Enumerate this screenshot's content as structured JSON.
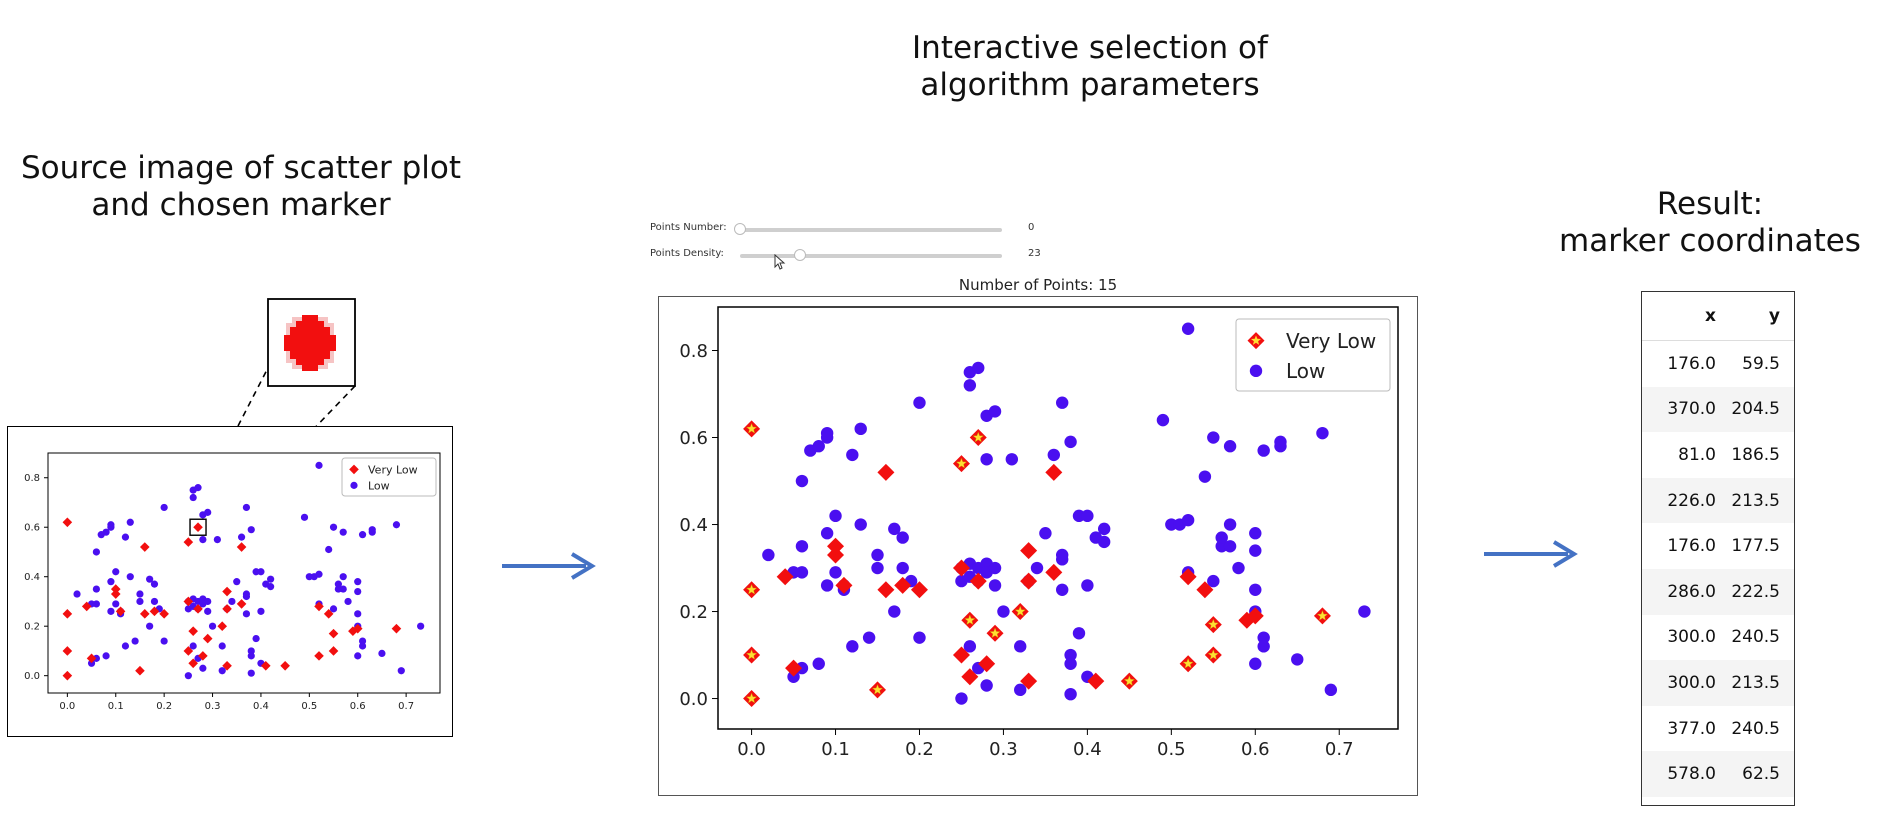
{
  "headings": {
    "source": [
      "Source image of scatter plot",
      "and chosen marker"
    ],
    "interactive": [
      "Interactive selection of",
      "algorithm parameters"
    ],
    "result": [
      "Result:",
      "marker coordinates"
    ]
  },
  "controls": {
    "points_number": {
      "label": "Points Number:",
      "value": "0",
      "fraction": 0.0
    },
    "points_density": {
      "label": "Points Density:",
      "value": "23",
      "fraction": 0.23
    }
  },
  "mid_title": "Number of Points: 15",
  "result_table": {
    "headers": [
      "x",
      "y"
    ],
    "rows": [
      [
        "176.0",
        "59.5"
      ],
      [
        "370.0",
        "204.5"
      ],
      [
        "81.0",
        "186.5"
      ],
      [
        "226.0",
        "213.5"
      ],
      [
        "176.0",
        "177.5"
      ],
      [
        "286.0",
        "222.5"
      ],
      [
        "300.0",
        "240.5"
      ],
      [
        "300.0",
        "213.5"
      ],
      [
        "377.0",
        "240.5"
      ],
      [
        "578.0",
        "62.5"
      ]
    ]
  },
  "colors": {
    "very_low": "#f20f0f",
    "low": "#4a0ff0",
    "arrow": "#4472c4",
    "star": "#ffe033"
  },
  "chart_data": {
    "type": "scatter",
    "xlim": [
      -0.04,
      0.77
    ],
    "ylim": [
      -0.07,
      0.9
    ],
    "xticks": [
      "0.0",
      "0.1",
      "0.2",
      "0.3",
      "0.4",
      "0.5",
      "0.6",
      "0.7"
    ],
    "yticks": [
      "0.0",
      "0.2",
      "0.4",
      "0.6",
      "0.8"
    ],
    "legend_position": "top-right",
    "series": [
      {
        "name": "Very Low",
        "marker": "diamond",
        "points": [
          [
            0.0,
            0.62
          ],
          [
            0.0,
            0.25
          ],
          [
            0.0,
            0.1
          ],
          [
            0.0,
            0.0
          ],
          [
            0.04,
            0.28
          ],
          [
            0.05,
            0.07
          ],
          [
            0.1,
            0.33
          ],
          [
            0.1,
            0.35
          ],
          [
            0.11,
            0.26
          ],
          [
            0.15,
            0.02
          ],
          [
            0.16,
            0.52
          ],
          [
            0.16,
            0.25
          ],
          [
            0.18,
            0.26
          ],
          [
            0.2,
            0.25
          ],
          [
            0.25,
            0.54
          ],
          [
            0.25,
            0.3
          ],
          [
            0.25,
            0.1
          ],
          [
            0.26,
            0.05
          ],
          [
            0.26,
            0.18
          ],
          [
            0.27,
            0.6
          ],
          [
            0.27,
            0.27
          ],
          [
            0.28,
            0.08
          ],
          [
            0.29,
            0.15
          ],
          [
            0.32,
            0.2
          ],
          [
            0.33,
            0.04
          ],
          [
            0.33,
            0.27
          ],
          [
            0.33,
            0.34
          ],
          [
            0.36,
            0.29
          ],
          [
            0.36,
            0.52
          ],
          [
            0.41,
            0.04
          ],
          [
            0.45,
            0.04
          ],
          [
            0.52,
            0.08
          ],
          [
            0.52,
            0.28
          ],
          [
            0.54,
            0.25
          ],
          [
            0.55,
            0.1
          ],
          [
            0.55,
            0.17
          ],
          [
            0.59,
            0.18
          ],
          [
            0.6,
            0.19
          ],
          [
            0.68,
            0.19
          ]
        ]
      },
      {
        "name": "Low",
        "marker": "circle",
        "points": [
          [
            0.02,
            0.33
          ],
          [
            0.05,
            0.29
          ],
          [
            0.05,
            0.05
          ],
          [
            0.06,
            0.07
          ],
          [
            0.06,
            0.29
          ],
          [
            0.06,
            0.35
          ],
          [
            0.06,
            0.5
          ],
          [
            0.07,
            0.57
          ],
          [
            0.08,
            0.08
          ],
          [
            0.08,
            0.58
          ],
          [
            0.09,
            0.6
          ],
          [
            0.09,
            0.61
          ],
          [
            0.09,
            0.26
          ],
          [
            0.09,
            0.38
          ],
          [
            0.1,
            0.42
          ],
          [
            0.1,
            0.29
          ],
          [
            0.11,
            0.25
          ],
          [
            0.11,
            0.26
          ],
          [
            0.12,
            0.56
          ],
          [
            0.12,
            0.12
          ],
          [
            0.13,
            0.62
          ],
          [
            0.13,
            0.4
          ],
          [
            0.14,
            0.14
          ],
          [
            0.15,
            0.33
          ],
          [
            0.15,
            0.3
          ],
          [
            0.17,
            0.2
          ],
          [
            0.17,
            0.39
          ],
          [
            0.18,
            0.37
          ],
          [
            0.18,
            0.3
          ],
          [
            0.19,
            0.27
          ],
          [
            0.2,
            0.68
          ],
          [
            0.2,
            0.14
          ],
          [
            0.25,
            0.27
          ],
          [
            0.25,
            0.3
          ],
          [
            0.25,
            0.0
          ],
          [
            0.26,
            0.75
          ],
          [
            0.26,
            0.72
          ],
          [
            0.26,
            0.31
          ],
          [
            0.26,
            0.28
          ],
          [
            0.26,
            0.12
          ],
          [
            0.27,
            0.76
          ],
          [
            0.27,
            0.3
          ],
          [
            0.27,
            0.27
          ],
          [
            0.27,
            0.07
          ],
          [
            0.28,
            0.31
          ],
          [
            0.28,
            0.29
          ],
          [
            0.28,
            0.03
          ],
          [
            0.28,
            0.55
          ],
          [
            0.28,
            0.65
          ],
          [
            0.29,
            0.66
          ],
          [
            0.29,
            0.3
          ],
          [
            0.29,
            0.26
          ],
          [
            0.3,
            0.2
          ],
          [
            0.31,
            0.55
          ],
          [
            0.32,
            0.12
          ],
          [
            0.32,
            0.02
          ],
          [
            0.33,
            0.27
          ],
          [
            0.34,
            0.3
          ],
          [
            0.35,
            0.38
          ],
          [
            0.36,
            0.56
          ],
          [
            0.37,
            0.68
          ],
          [
            0.37,
            0.32
          ],
          [
            0.37,
            0.33
          ],
          [
            0.37,
            0.25
          ],
          [
            0.38,
            0.59
          ],
          [
            0.38,
            0.1
          ],
          [
            0.38,
            0.01
          ],
          [
            0.38,
            0.08
          ],
          [
            0.39,
            0.15
          ],
          [
            0.39,
            0.42
          ],
          [
            0.4,
            0.05
          ],
          [
            0.4,
            0.42
          ],
          [
            0.4,
            0.26
          ],
          [
            0.41,
            0.37
          ],
          [
            0.42,
            0.36
          ],
          [
            0.42,
            0.39
          ],
          [
            0.49,
            0.64
          ],
          [
            0.5,
            0.4
          ],
          [
            0.51,
            0.4
          ],
          [
            0.52,
            0.41
          ],
          [
            0.52,
            0.85
          ],
          [
            0.52,
            0.29
          ],
          [
            0.54,
            0.51
          ],
          [
            0.55,
            0.6
          ],
          [
            0.55,
            0.27
          ],
          [
            0.56,
            0.35
          ],
          [
            0.56,
            0.37
          ],
          [
            0.57,
            0.58
          ],
          [
            0.57,
            0.4
          ],
          [
            0.57,
            0.35
          ],
          [
            0.58,
            0.3
          ],
          [
            0.6,
            0.38
          ],
          [
            0.6,
            0.34
          ],
          [
            0.6,
            0.25
          ],
          [
            0.6,
            0.2
          ],
          [
            0.6,
            0.08
          ],
          [
            0.61,
            0.57
          ],
          [
            0.61,
            0.14
          ],
          [
            0.61,
            0.12
          ],
          [
            0.63,
            0.58
          ],
          [
            0.63,
            0.59
          ],
          [
            0.65,
            0.09
          ],
          [
            0.68,
            0.61
          ],
          [
            0.69,
            0.02
          ],
          [
            0.73,
            0.2
          ]
        ]
      }
    ],
    "selected": [
      [
        0.0,
        0.62
      ],
      [
        0.0,
        0.25
      ],
      [
        0.0,
        0.1
      ],
      [
        0.0,
        0.0
      ],
      [
        0.15,
        0.02
      ],
      [
        0.25,
        0.54
      ],
      [
        0.26,
        0.18
      ],
      [
        0.27,
        0.6
      ],
      [
        0.29,
        0.15
      ],
      [
        0.32,
        0.2
      ],
      [
        0.45,
        0.04
      ],
      [
        0.52,
        0.08
      ],
      [
        0.55,
        0.17
      ],
      [
        0.55,
        0.1
      ],
      [
        0.68,
        0.19
      ]
    ]
  }
}
